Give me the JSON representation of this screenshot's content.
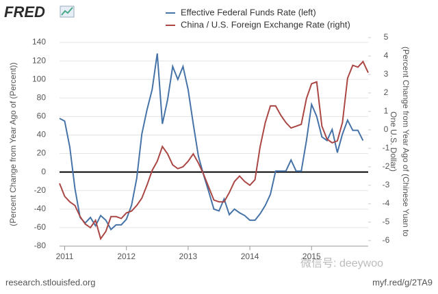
{
  "chart_data": {
    "type": "line",
    "logo": "FRED",
    "ylabel": "(Percent Change from Year Ago of (Percent))",
    "y2label": [
      "(Percent Change from Year Ago of (Chinese Yuan to",
      "One U.S. Dollar)"
    ],
    "source": "research.stlouisfed.org",
    "link": "myf.red/g/2TA9",
    "watermark": "微信号: deeywoo",
    "x": [
      2010.917,
      2011,
      2011.083,
      2011.167,
      2011.25,
      2011.333,
      2011.417,
      2011.5,
      2011.583,
      2011.667,
      2011.75,
      2011.833,
      2011.917,
      2012,
      2012.083,
      2012.167,
      2012.25,
      2012.333,
      2012.417,
      2012.5,
      2012.583,
      2012.667,
      2012.75,
      2012.833,
      2012.917,
      2013,
      2013.083,
      2013.167,
      2013.25,
      2013.333,
      2013.417,
      2013.5,
      2013.583,
      2013.667,
      2013.75,
      2013.833,
      2013.917,
      2014,
      2014.083,
      2014.167,
      2014.25,
      2014.333,
      2014.417,
      2014.5,
      2014.583,
      2014.667,
      2014.75,
      2014.833,
      2014.917,
      2015,
      2015.083,
      2015.167,
      2015.25,
      2015.333,
      2015.417,
      2015.5,
      2015.583,
      2015.667,
      2015.75,
      2015.833,
      2015.917
    ],
    "series": [
      {
        "name": "Effective Federal Funds Rate (left)",
        "color": "#4572a7",
        "values": [
          58,
          55,
          27,
          -18,
          -49,
          -55,
          -49,
          -58,
          -47,
          -52,
          -62,
          -57,
          -57,
          -51,
          -36,
          -7,
          41,
          67,
          89,
          128,
          52,
          78,
          114,
          100,
          114,
          89,
          52,
          17,
          -3,
          -21,
          -40,
          -42,
          -29,
          -46,
          -40,
          -44,
          -47,
          -52,
          -52,
          -45,
          -36,
          -24,
          1,
          1,
          1,
          13,
          1,
          1,
          34,
          73,
          60,
          38,
          34,
          46,
          21,
          41,
          56,
          45,
          45,
          34,
          null
        ]
      },
      {
        "name": "China / U.S. Foreign Exchange Rate (right)",
        "color": "#aa4643",
        "axis": "y2",
        "values": [
          -2.9,
          -3.6,
          -3.9,
          -4.1,
          -4.7,
          -5.1,
          -5.3,
          -4.9,
          -5.9,
          -5.5,
          -4.7,
          -4.7,
          -4.8,
          -4.5,
          -4.4,
          -4.1,
          -3.7,
          -3.0,
          -2.2,
          -1.7,
          -0.9,
          -1.3,
          -1.9,
          -2.1,
          -2.0,
          -1.7,
          -1.3,
          -1.8,
          -2.4,
          -3.1,
          -3.8,
          -3.9,
          -3.9,
          -3.4,
          -2.8,
          -2.5,
          -2.8,
          -3.0,
          -2.7,
          -0.9,
          0.4,
          1.3,
          1.3,
          0.8,
          0.4,
          0.1,
          0.2,
          0.3,
          1.7,
          2.5,
          2.6,
          0.2,
          -0.5,
          -0.7,
          -0.6,
          0.4,
          2.8,
          3.5,
          3.4,
          3.7,
          3.1
        ]
      }
    ],
    "xlim": [
      2010.917,
      2015.917
    ],
    "xticks": [
      2011,
      2012,
      2013,
      2014,
      2015
    ],
    "ylim": [
      -80,
      140
    ],
    "yticks": [
      -80,
      -60,
      -40,
      -20,
      0,
      20,
      40,
      60,
      80,
      100,
      120,
      140
    ],
    "y2lim": [
      -6.3,
      4.74
    ],
    "y2ticks": [
      -6,
      -5,
      -4,
      -3,
      -2,
      -1,
      0,
      1,
      2,
      3,
      4,
      5
    ],
    "grid": true,
    "zero_line": true,
    "legend": "top"
  }
}
